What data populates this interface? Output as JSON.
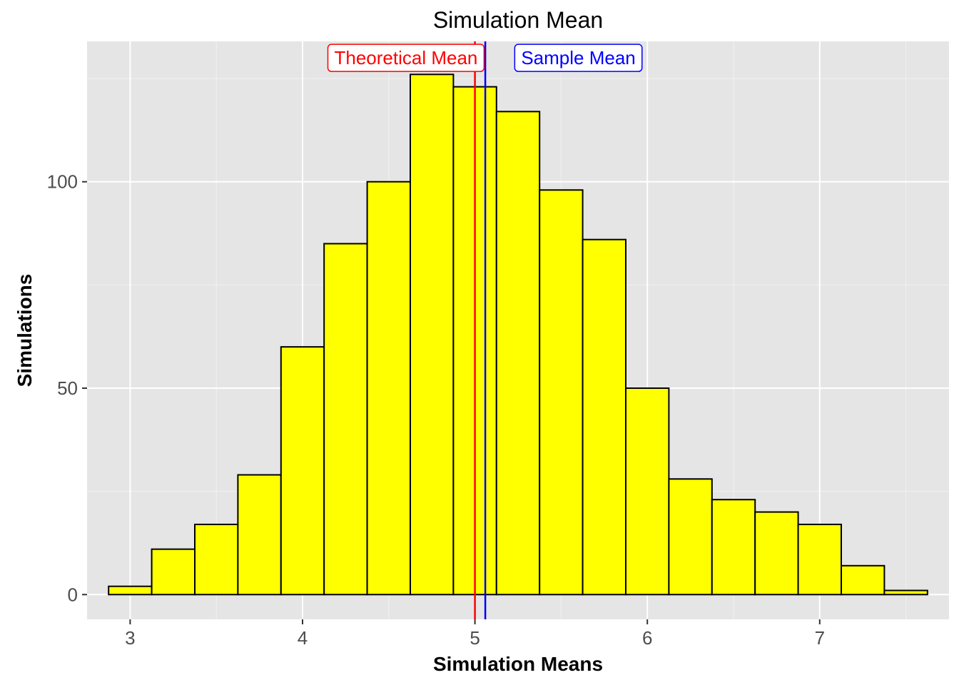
{
  "chart_data": {
    "type": "bar",
    "title": "Simulation Mean",
    "xlabel": "Simulation Means",
    "ylabel": "Simulations",
    "xlim": [
      2.75,
      7.75
    ],
    "ylim": [
      -6,
      134
    ],
    "x_ticks": [
      3,
      4,
      5,
      6,
      7
    ],
    "y_ticks": [
      0,
      50,
      100
    ],
    "grid": true,
    "bins": [
      {
        "x0": 2.875,
        "x1": 3.125,
        "count": 2
      },
      {
        "x0": 3.125,
        "x1": 3.375,
        "count": 11
      },
      {
        "x0": 3.375,
        "x1": 3.625,
        "count": 17
      },
      {
        "x0": 3.625,
        "x1": 3.875,
        "count": 29
      },
      {
        "x0": 3.875,
        "x1": 4.125,
        "count": 60
      },
      {
        "x0": 4.125,
        "x1": 4.375,
        "count": 85
      },
      {
        "x0": 4.375,
        "x1": 4.625,
        "count": 100
      },
      {
        "x0": 4.625,
        "x1": 4.875,
        "count": 126
      },
      {
        "x0": 4.875,
        "x1": 5.125,
        "count": 123
      },
      {
        "x0": 5.125,
        "x1": 5.375,
        "count": 117
      },
      {
        "x0": 5.375,
        "x1": 5.625,
        "count": 98
      },
      {
        "x0": 5.625,
        "x1": 5.875,
        "count": 86
      },
      {
        "x0": 5.875,
        "x1": 6.125,
        "count": 50
      },
      {
        "x0": 6.125,
        "x1": 6.375,
        "count": 28
      },
      {
        "x0": 6.375,
        "x1": 6.625,
        "count": 23
      },
      {
        "x0": 6.625,
        "x1": 6.875,
        "count": 20
      },
      {
        "x0": 6.875,
        "x1": 7.125,
        "count": 17
      },
      {
        "x0": 7.125,
        "x1": 7.375,
        "count": 7
      },
      {
        "x0": 7.375,
        "x1": 7.625,
        "count": 1
      }
    ],
    "bar_fill": "#ffff00",
    "bar_stroke": "#000000",
    "reference_lines": [
      {
        "label": "Theoretical Mean",
        "x": 5.0,
        "label_x": 4.6,
        "label_y": 130,
        "color": "#ff0000"
      },
      {
        "label": "Sample Mean",
        "x": 5.06,
        "label_x": 5.6,
        "label_y": 130,
        "color": "#0000ff"
      }
    ]
  }
}
